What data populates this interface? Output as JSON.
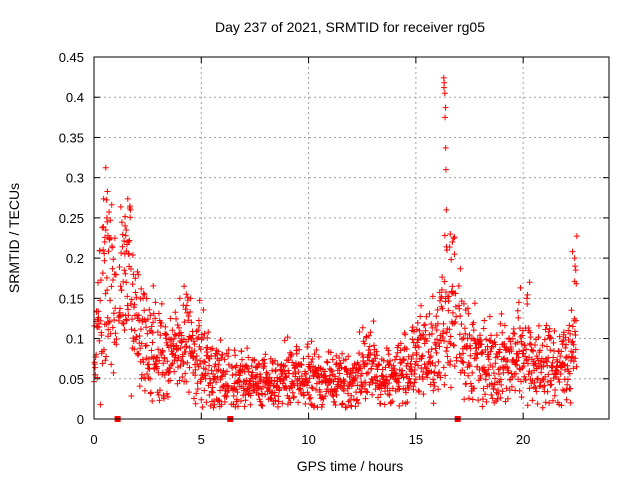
{
  "chart_data": {
    "type": "scatter",
    "title": "Day 237 of 2021, SRMTID for receiver rg05",
    "xlabel": "GPS time / hours",
    "ylabel": "SRMTID / TECUs",
    "xlim": [
      0,
      24
    ],
    "ylim": [
      0,
      0.45
    ],
    "x_ticks": [
      0,
      5,
      10,
      15,
      20
    ],
    "y_ticks": [
      0,
      0.05,
      0.1,
      0.15,
      0.2,
      0.25,
      0.3,
      0.35,
      0.4,
      0.45
    ],
    "x_tick_labels": [
      "0",
      "5",
      "10",
      "15",
      "20"
    ],
    "y_tick_labels": [
      "0",
      "0.05",
      "0.1",
      "0.15",
      "0.2",
      "0.25",
      "0.3",
      "0.35",
      "0.4",
      "0.45"
    ],
    "grid": true,
    "marker": "+",
    "color": "#ff0000",
    "missing_data_markers_x": [
      1.1,
      6.35,
      16.95
    ],
    "trend": [
      [
        0.0,
        0.07
      ],
      [
        0.3,
        0.14
      ],
      [
        0.5,
        0.17
      ],
      [
        0.7,
        0.18
      ],
      [
        1.0,
        0.14
      ],
      [
        1.5,
        0.18
      ],
      [
        1.9,
        0.12
      ],
      [
        2.3,
        0.1
      ],
      [
        3.0,
        0.08
      ],
      [
        3.5,
        0.07
      ],
      [
        4.3,
        0.1
      ],
      [
        4.8,
        0.08
      ],
      [
        5.5,
        0.055
      ],
      [
        6.5,
        0.05
      ],
      [
        8.0,
        0.045
      ],
      [
        9.0,
        0.05
      ],
      [
        10.0,
        0.05
      ],
      [
        11.0,
        0.048
      ],
      [
        12.0,
        0.045
      ],
      [
        12.6,
        0.07
      ],
      [
        13.5,
        0.05
      ],
      [
        14.5,
        0.06
      ],
      [
        15.5,
        0.085
      ],
      [
        16.0,
        0.09
      ],
      [
        16.5,
        0.13
      ],
      [
        17.0,
        0.12
      ],
      [
        17.5,
        0.08
      ],
      [
        18.0,
        0.075
      ],
      [
        19.0,
        0.07
      ],
      [
        20.0,
        0.085
      ],
      [
        20.5,
        0.07
      ],
      [
        21.5,
        0.065
      ],
      [
        22.2,
        0.065
      ],
      [
        22.5,
        0.16
      ]
    ],
    "segments": [
      {
        "start": 0.0,
        "end": 1.05
      },
      {
        "start": 1.15,
        "end": 6.3
      },
      {
        "start": 6.4,
        "end": 16.9
      },
      {
        "start": 17.0,
        "end": 22.5
      }
    ],
    "peak_points": [
      [
        0.6,
        0.25
      ],
      [
        0.62,
        0.245
      ],
      [
        0.55,
        0.235
      ],
      [
        0.65,
        0.228
      ],
      [
        0.5,
        0.22
      ],
      [
        1.45,
        0.24
      ],
      [
        1.5,
        0.235
      ],
      [
        1.48,
        0.228
      ],
      [
        1.55,
        0.22
      ],
      [
        1.6,
        0.205
      ],
      [
        4.2,
        0.165
      ],
      [
        4.3,
        0.155
      ],
      [
        4.5,
        0.15
      ],
      [
        16.3,
        0.424
      ],
      [
        16.32,
        0.418
      ],
      [
        16.31,
        0.412
      ],
      [
        16.35,
        0.405
      ],
      [
        16.38,
        0.387
      ],
      [
        16.36,
        0.375
      ],
      [
        16.39,
        0.337
      ],
      [
        16.4,
        0.31
      ],
      [
        16.42,
        0.26
      ],
      [
        16.45,
        0.21
      ],
      [
        16.6,
        0.23
      ],
      [
        16.7,
        0.22
      ],
      [
        16.8,
        0.205
      ],
      [
        20.3,
        0.17
      ],
      [
        22.3,
        0.208
      ],
      [
        22.4,
        0.2
      ],
      [
        22.42,
        0.19
      ],
      [
        22.45,
        0.185
      ]
    ]
  }
}
